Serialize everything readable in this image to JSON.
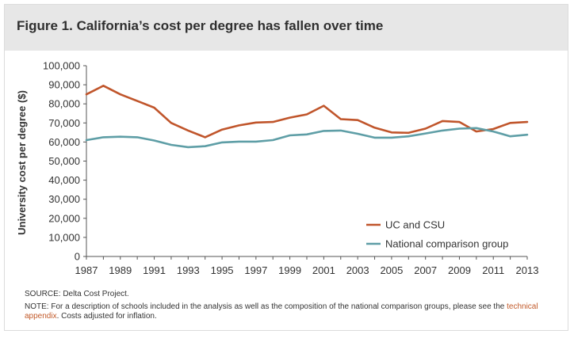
{
  "title": "Figure 1. California’s cost per degree has fallen over time",
  "source": "SOURCE: Delta Cost Project.",
  "note": {
    "prefix": "NOTE: For a description of schools included in the analysis as well as the composition of the national comparison groups, please see the",
    "link_text": "technical appendix",
    "suffix": ". Costs adjusted for inflation."
  },
  "colors": {
    "uc_csu": "#c0552b",
    "national": "#5e9ea6",
    "axis": "#555555",
    "link": "#c25a2a"
  },
  "chart_data": {
    "type": "line",
    "title": "Figure 1. California’s cost per degree has fallen over time",
    "xlabel": "",
    "ylabel": "University cost per degree ($)",
    "ylim": [
      0,
      100000
    ],
    "xlim": [
      1987,
      2013
    ],
    "grid": false,
    "legend_position": "bottom-right",
    "y_ticks": [
      "0",
      "10,000",
      "20,000",
      "30,000",
      "40,000",
      "50,000",
      "60,000",
      "70,000",
      "80,000",
      "90,000",
      "100,000"
    ],
    "x_ticks": [
      "1987",
      "1989",
      "1991",
      "1993",
      "1995",
      "1997",
      "1999",
      "2001",
      "2003",
      "2005",
      "2007",
      "2009",
      "2011",
      "2013"
    ],
    "x": [
      1987,
      1988,
      1989,
      1990,
      1991,
      1992,
      1993,
      1994,
      1995,
      1996,
      1997,
      1998,
      1999,
      2000,
      2001,
      2002,
      2003,
      2004,
      2005,
      2006,
      2007,
      2008,
      2009,
      2010,
      2011,
      2012,
      2013
    ],
    "series": [
      {
        "name": "UC and CSU",
        "values": [
          85000,
          89500,
          85000,
          81500,
          78000,
          70000,
          66000,
          62500,
          66500,
          68700,
          70200,
          70500,
          72800,
          74500,
          79000,
          72000,
          71500,
          67500,
          65000,
          64800,
          67000,
          71000,
          70500,
          65500,
          66800,
          70000,
          70500
        ]
      },
      {
        "name": "National comparison group",
        "values": [
          61000,
          62500,
          62800,
          62500,
          60800,
          58500,
          57300,
          57800,
          59800,
          60200,
          60200,
          61000,
          63500,
          64000,
          65800,
          66000,
          64300,
          62300,
          62300,
          63000,
          64500,
          66000,
          67000,
          67300,
          65500,
          63000,
          63800
        ]
      }
    ]
  }
}
